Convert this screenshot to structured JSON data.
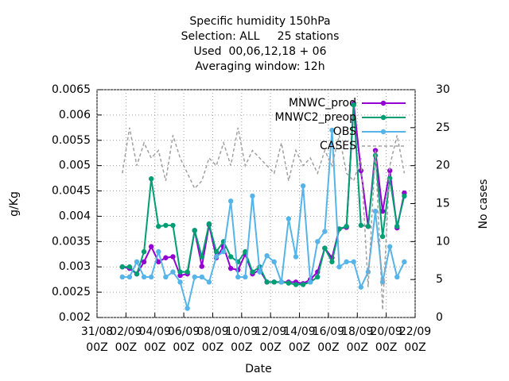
{
  "chart_data": {
    "type": "line",
    "title": "Specific humidity 150hPa",
    "subtitle": [
      "Selection: ALL     25 stations",
      "Used  00,06,12,18 + 06",
      "Averaging window: 12h"
    ],
    "xlabel": "Date",
    "ylabel": "g/Kg",
    "y2label": "No cases",
    "x": [
      1.75,
      2.25,
      2.75,
      3.25,
      3.75,
      4.25,
      4.75,
      5.25,
      5.75,
      6.25,
      6.75,
      7.25,
      7.75,
      8.25,
      8.75,
      9.25,
      9.75,
      10.25,
      10.75,
      11.25,
      11.75,
      12.25,
      12.75,
      13.25,
      13.75,
      14.25,
      14.75,
      15.25,
      15.75,
      16.25,
      16.75,
      17.25,
      17.75,
      18.25,
      18.75,
      19.25,
      19.75,
      20.25,
      20.75,
      21.25
    ],
    "xlim": [
      0,
      22
    ],
    "xticks": [
      {
        "value": 0,
        "label": "31/08\n00Z"
      },
      {
        "value": 2,
        "label": "02/09\n00Z"
      },
      {
        "value": 4,
        "label": "04/09\n00Z"
      },
      {
        "value": 6,
        "label": "06/09\n00Z"
      },
      {
        "value": 8,
        "label": "08/09\n00Z"
      },
      {
        "value": 10,
        "label": "10/09\n00Z"
      },
      {
        "value": 12,
        "label": "12/09\n00Z"
      },
      {
        "value": 14,
        "label": "14/09\n00Z"
      },
      {
        "value": 16,
        "label": "16/09\n00Z"
      },
      {
        "value": 18,
        "label": "18/09\n00Z"
      },
      {
        "value": 20,
        "label": "20/09\n00Z"
      },
      {
        "value": 22,
        "label": "22/09\n00Z"
      }
    ],
    "ylim": [
      0.002,
      0.0065
    ],
    "yticks": [
      0.002,
      0.0025,
      0.003,
      0.0035,
      0.004,
      0.0045,
      0.005,
      0.0055,
      0.006,
      0.0065
    ],
    "y2lim": [
      0,
      30
    ],
    "y2ticks": [
      0,
      5,
      10,
      15,
      20,
      25,
      30
    ],
    "grid": true,
    "legend": "top-right",
    "series": [
      {
        "name": "MNWC_prod",
        "color": "#9400d3",
        "values": [
          0.003,
          0.00297,
          0.00286,
          0.0031,
          0.0034,
          0.0031,
          0.00318,
          0.0032,
          0.00283,
          0.00286,
          0.00372,
          0.00301,
          0.00383,
          0.00318,
          0.0034,
          0.00297,
          0.00294,
          0.00325,
          0.00286,
          0.00294,
          0.0027,
          0.0027,
          0.0027,
          0.0027,
          0.0027,
          0.00267,
          0.00275,
          0.0029,
          0.00337,
          0.00318,
          0.00375,
          0.00378,
          0.00623,
          0.0049,
          0.0038,
          0.0053,
          0.0041,
          0.0049,
          0.00377,
          0.00446
        ]
      },
      {
        "name": "MNWC2_preop",
        "color": "#009e73",
        "values": [
          0.003,
          0.003,
          0.00286,
          0.0033,
          0.00474,
          0.0038,
          0.00382,
          0.00382,
          0.0029,
          0.0029,
          0.00372,
          0.0032,
          0.00385,
          0.0033,
          0.0035,
          0.0032,
          0.0031,
          0.0033,
          0.0029,
          0.003,
          0.0027,
          0.0027,
          0.0027,
          0.00268,
          0.00265,
          0.00265,
          0.0027,
          0.0028,
          0.00337,
          0.0031,
          0.00375,
          0.0038,
          0.0062,
          0.00382,
          0.0038,
          0.0052,
          0.0036,
          0.00475,
          0.0038,
          0.0044
        ]
      },
      {
        "name": "OBS",
        "color": "#56b4e9",
        "values": [
          0.0028,
          0.0028,
          0.0031,
          0.0028,
          0.0028,
          0.0033,
          0.0028,
          0.0029,
          0.0027,
          0.00218,
          0.0028,
          0.0028,
          0.0027,
          0.0032,
          0.0033,
          0.0043,
          0.0028,
          0.0028,
          0.0044,
          0.0029,
          0.00322,
          0.0031,
          0.0027,
          0.00395,
          0.0032,
          0.0046,
          0.0027,
          0.0035,
          0.0037,
          0.0057,
          0.003,
          0.0031,
          0.0031,
          0.0026,
          0.0029,
          0.0041,
          0.0027,
          0.0034,
          0.0028,
          0.0031
        ]
      },
      {
        "name": "CASES",
        "color": "#a0a0a0",
        "axis": "y2",
        "dashed": true,
        "values": [
          19,
          25,
          20,
          23,
          21,
          22,
          18,
          24,
          21,
          19,
          17,
          18,
          21,
          20,
          23,
          20,
          25,
          20,
          22,
          21,
          20,
          19,
          23,
          18,
          22,
          20,
          21,
          19,
          22,
          20,
          24,
          19,
          18,
          21,
          4,
          22,
          1,
          20,
          24,
          19
        ]
      }
    ]
  }
}
